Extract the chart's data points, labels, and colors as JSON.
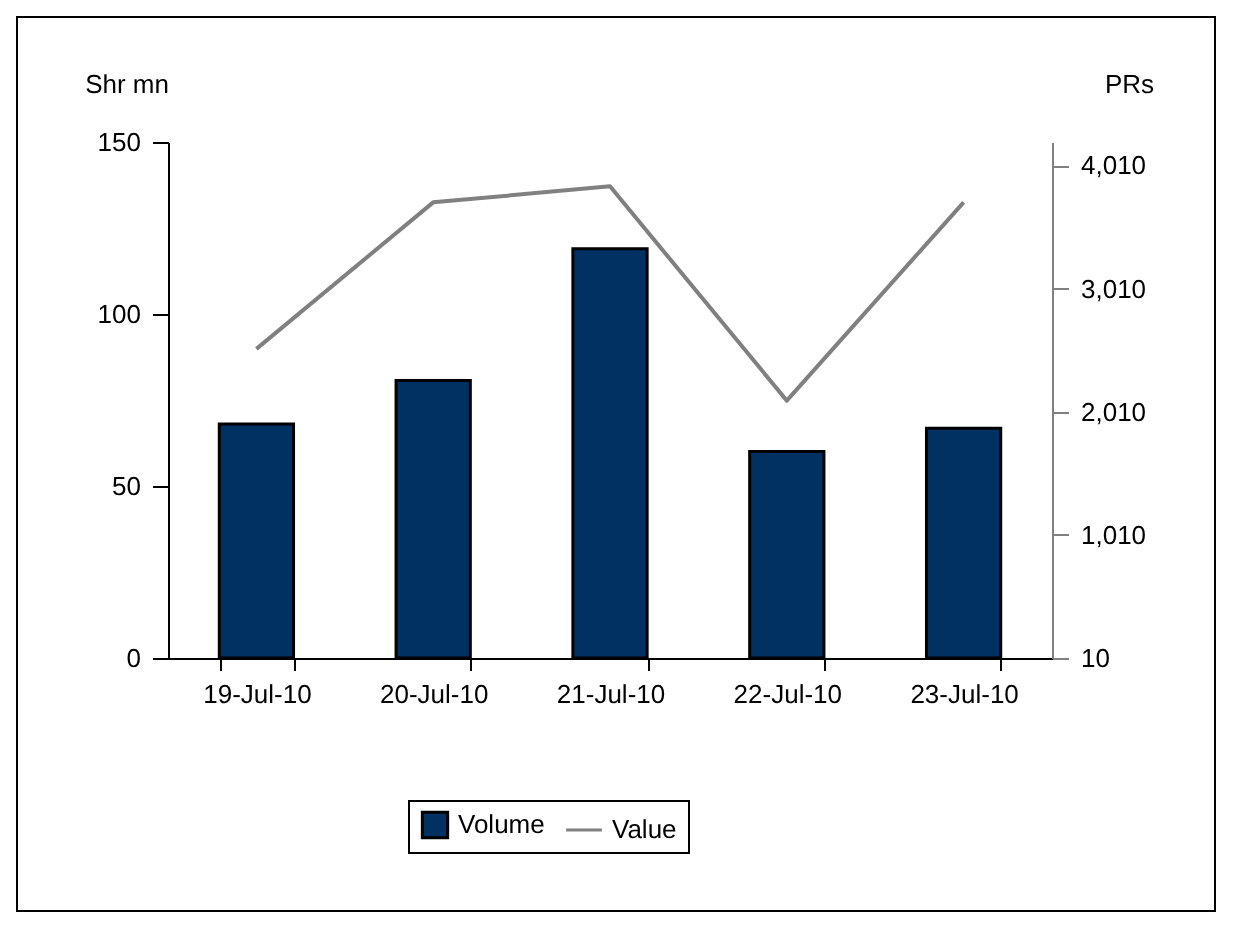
{
  "chart_data": {
    "type": "bar",
    "categories": [
      "19-Jul-10",
      "20-Jul-10",
      "21-Jul-10",
      "22-Jul-10",
      "23-Jul-10"
    ],
    "ylabel": "Shr mn",
    "y2label": "PRs",
    "series": [
      {
        "name": "Volume",
        "color": "#003163",
        "values": [
          68,
          80.7,
          119,
          60,
          66.8
        ]
      },
      {
        "name": "Value",
        "type": "line",
        "axis": "y2",
        "color": "#808080",
        "values": [
          2520,
          3710,
          3840,
          2100,
          3710
        ]
      }
    ],
    "ylim": [
      0,
      150
    ],
    "yticks": [
      0,
      50,
      100,
      150
    ],
    "y2lim": [
      10,
      4200
    ],
    "y2ticks": [
      {
        "value": 10,
        "label": "10"
      },
      {
        "value": 1010,
        "label": "1,010"
      },
      {
        "value": 2010,
        "label": "2,010"
      },
      {
        "value": 3010,
        "label": "3,010"
      },
      {
        "value": 4010,
        "label": "4,010"
      }
    ],
    "grid": false,
    "legend": "bottom"
  }
}
